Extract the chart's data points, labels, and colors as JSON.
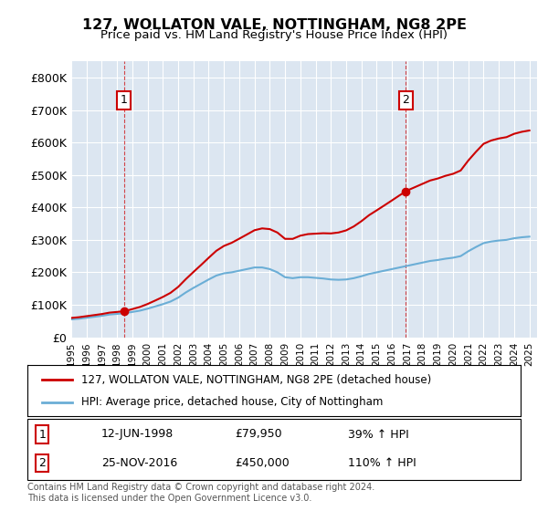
{
  "title": "127, WOLLATON VALE, NOTTINGHAM, NG8 2PE",
  "subtitle": "Price paid vs. HM Land Registry's House Price Index (HPI)",
  "xlabel": "",
  "ylabel": "",
  "ylim": [
    0,
    850000
  ],
  "yticks": [
    0,
    100000,
    200000,
    300000,
    400000,
    500000,
    600000,
    700000,
    800000
  ],
  "ytick_labels": [
    "£0",
    "£100K",
    "£200K",
    "£300K",
    "£400K",
    "£500K",
    "£600K",
    "£700K",
    "£800K"
  ],
  "background_color": "#dce6f1",
  "plot_bg_color": "#dce6f1",
  "fig_bg_color": "#ffffff",
  "red_color": "#cc0000",
  "blue_color": "#6baed6",
  "sale1_date": 1998.45,
  "sale1_price": 79950,
  "sale2_date": 2016.9,
  "sale2_price": 450000,
  "legend_line1": "127, WOLLATON VALE, NOTTINGHAM, NG8 2PE (detached house)",
  "legend_line2": "HPI: Average price, detached house, City of Nottingham",
  "note1_label": "1",
  "note1_date": "12-JUN-1998",
  "note1_price": "£79,950",
  "note1_hpi": "39% ↑ HPI",
  "note2_label": "2",
  "note2_date": "25-NOV-2016",
  "note2_price": "£450,000",
  "note2_hpi": "110% ↑ HPI",
  "footer": "Contains HM Land Registry data © Crown copyright and database right 2024.\nThis data is licensed under the Open Government Licence v3.0.",
  "xlim_start": 1995.0,
  "xlim_end": 2025.5,
  "xticks": [
    1995,
    1996,
    1997,
    1998,
    1999,
    2000,
    2001,
    2002,
    2003,
    2004,
    2005,
    2006,
    2007,
    2008,
    2009,
    2010,
    2011,
    2012,
    2013,
    2014,
    2015,
    2016,
    2017,
    2018,
    2019,
    2020,
    2021,
    2022,
    2023,
    2024,
    2025
  ]
}
